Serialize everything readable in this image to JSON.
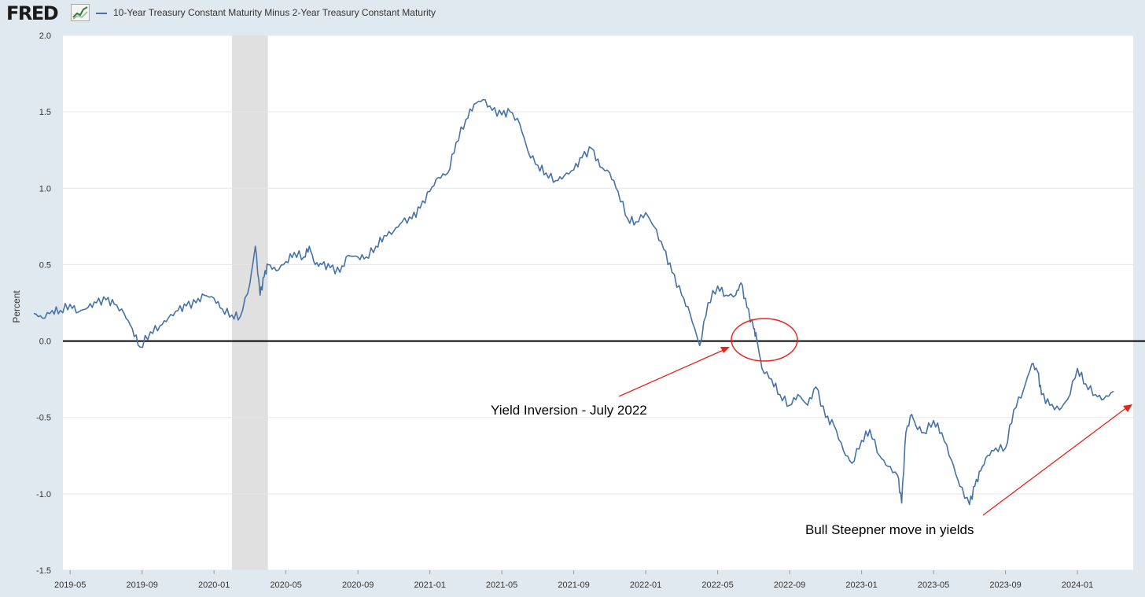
{
  "header": {
    "logo_text": "FRED",
    "legend_label": "10-Year Treasury Constant Maturity Minus 2-Year Treasury Constant Maturity"
  },
  "colors": {
    "series": "#4572a7",
    "annotation": "#e8231a",
    "zero_line": "#000000",
    "recession": "#e0e0e0"
  },
  "chart_data": {
    "type": "line",
    "title": "10-Year Treasury Constant Maturity Minus 2-Year Treasury Constant Maturity",
    "ylabel": "Percent",
    "xlabel": "",
    "ylim": [
      -1.5,
      2.0
    ],
    "xlim": [
      "2019-03",
      "2024-03"
    ],
    "yticks": [
      "2.0",
      "1.5",
      "1.0",
      "0.5",
      "0.0",
      "-0.5",
      "-1.0",
      "-1.5"
    ],
    "xticks": [
      "2019-05",
      "2019-09",
      "2020-01",
      "2020-05",
      "2020-09",
      "2021-01",
      "2021-05",
      "2021-09",
      "2022-01",
      "2022-05",
      "2022-09",
      "2023-01",
      "2023-05",
      "2023-09",
      "2024-01"
    ],
    "recession": {
      "start": "2020-02",
      "end": "2020-04"
    },
    "series": [
      {
        "name": "10-Year Treasury Constant Maturity Minus 2-Year Treasury Constant Maturity",
        "x": [
          "2019-03-01",
          "2019-03-15",
          "2019-04-01",
          "2019-04-15",
          "2019-05-01",
          "2019-05-15",
          "2019-06-01",
          "2019-06-15",
          "2019-07-01",
          "2019-07-15",
          "2019-08-01",
          "2019-08-15",
          "2019-08-28",
          "2019-09-15",
          "2019-10-01",
          "2019-10-15",
          "2019-11-01",
          "2019-11-15",
          "2019-12-01",
          "2019-12-15",
          "2020-01-01",
          "2020-01-15",
          "2020-02-01",
          "2020-02-15",
          "2020-03-01",
          "2020-03-10",
          "2020-03-18",
          "2020-03-25",
          "2020-04-01",
          "2020-04-15",
          "2020-05-01",
          "2020-05-15",
          "2020-06-01",
          "2020-06-10",
          "2020-06-20",
          "2020-07-01",
          "2020-07-15",
          "2020-08-01",
          "2020-08-15",
          "2020-09-01",
          "2020-09-15",
          "2020-10-01",
          "2020-10-15",
          "2020-11-01",
          "2020-11-15",
          "2020-12-01",
          "2020-12-15",
          "2021-01-01",
          "2021-01-15",
          "2021-02-01",
          "2021-02-15",
          "2021-03-01",
          "2021-03-15",
          "2021-03-30",
          "2021-04-15",
          "2021-05-01",
          "2021-05-15",
          "2021-06-01",
          "2021-06-15",
          "2021-07-01",
          "2021-07-15",
          "2021-08-01",
          "2021-08-15",
          "2021-09-01",
          "2021-09-15",
          "2021-10-01",
          "2021-10-15",
          "2021-11-01",
          "2021-11-15",
          "2021-12-01",
          "2021-12-15",
          "2022-01-01",
          "2022-01-15",
          "2022-02-01",
          "2022-02-15",
          "2022-03-01",
          "2022-03-15",
          "2022-04-01",
          "2022-04-15",
          "2022-05-01",
          "2022-05-15",
          "2022-06-01",
          "2022-06-10",
          "2022-06-20",
          "2022-07-01",
          "2022-07-06",
          "2022-07-15",
          "2022-08-01",
          "2022-08-15",
          "2022-09-01",
          "2022-09-15",
          "2022-10-01",
          "2022-10-15",
          "2022-11-01",
          "2022-11-15",
          "2022-12-01",
          "2022-12-15",
          "2023-01-01",
          "2023-01-15",
          "2023-02-01",
          "2023-02-15",
          "2023-03-01",
          "2023-03-08",
          "2023-03-15",
          "2023-03-25",
          "2023-04-01",
          "2023-04-15",
          "2023-05-01",
          "2023-05-15",
          "2023-06-01",
          "2023-06-15",
          "2023-07-01",
          "2023-07-10",
          "2023-07-20",
          "2023-08-01",
          "2023-08-15",
          "2023-09-01",
          "2023-09-15",
          "2023-10-01",
          "2023-10-15",
          "2023-10-25",
          "2023-11-01",
          "2023-11-15",
          "2023-12-01",
          "2023-12-15",
          "2024-01-01",
          "2024-01-15",
          "2024-02-01",
          "2024-02-15",
          "2024-03-01"
        ],
        "values": [
          0.18,
          0.15,
          0.2,
          0.2,
          0.24,
          0.19,
          0.22,
          0.25,
          0.27,
          0.24,
          0.18,
          0.08,
          -0.04,
          0.06,
          0.1,
          0.15,
          0.2,
          0.23,
          0.25,
          0.3,
          0.28,
          0.21,
          0.17,
          0.16,
          0.38,
          0.62,
          0.3,
          0.42,
          0.5,
          0.46,
          0.52,
          0.58,
          0.55,
          0.62,
          0.5,
          0.5,
          0.48,
          0.45,
          0.56,
          0.55,
          0.55,
          0.62,
          0.69,
          0.72,
          0.78,
          0.8,
          0.87,
          0.98,
          1.07,
          1.1,
          1.3,
          1.45,
          1.55,
          1.58,
          1.51,
          1.48,
          1.5,
          1.42,
          1.24,
          1.15,
          1.1,
          1.05,
          1.08,
          1.12,
          1.2,
          1.26,
          1.14,
          1.1,
          0.98,
          0.8,
          0.78,
          0.84,
          0.75,
          0.6,
          0.45,
          0.3,
          0.18,
          -0.03,
          0.25,
          0.36,
          0.3,
          0.3,
          0.38,
          0.22,
          0.08,
          0.02,
          -0.18,
          -0.25,
          -0.35,
          -0.42,
          -0.35,
          -0.42,
          -0.3,
          -0.5,
          -0.55,
          -0.72,
          -0.8,
          -0.65,
          -0.58,
          -0.75,
          -0.82,
          -0.88,
          -1.06,
          -0.6,
          -0.48,
          -0.55,
          -0.6,
          -0.52,
          -0.6,
          -0.78,
          -0.95,
          -1.07,
          -0.95,
          -0.85,
          -0.75,
          -0.7,
          -0.7,
          -0.45,
          -0.32,
          -0.15,
          -0.2,
          -0.35,
          -0.42,
          -0.45,
          -0.38,
          -0.18,
          -0.28,
          -0.35,
          -0.38,
          -0.33
        ]
      }
    ],
    "reference_line": 0.0,
    "annotations": [
      {
        "text": "Yield Inversion - July 2022",
        "target": "2022-07-06"
      },
      {
        "text": "Bull Steepner move in yields",
        "target": "2024-03-01"
      }
    ]
  }
}
